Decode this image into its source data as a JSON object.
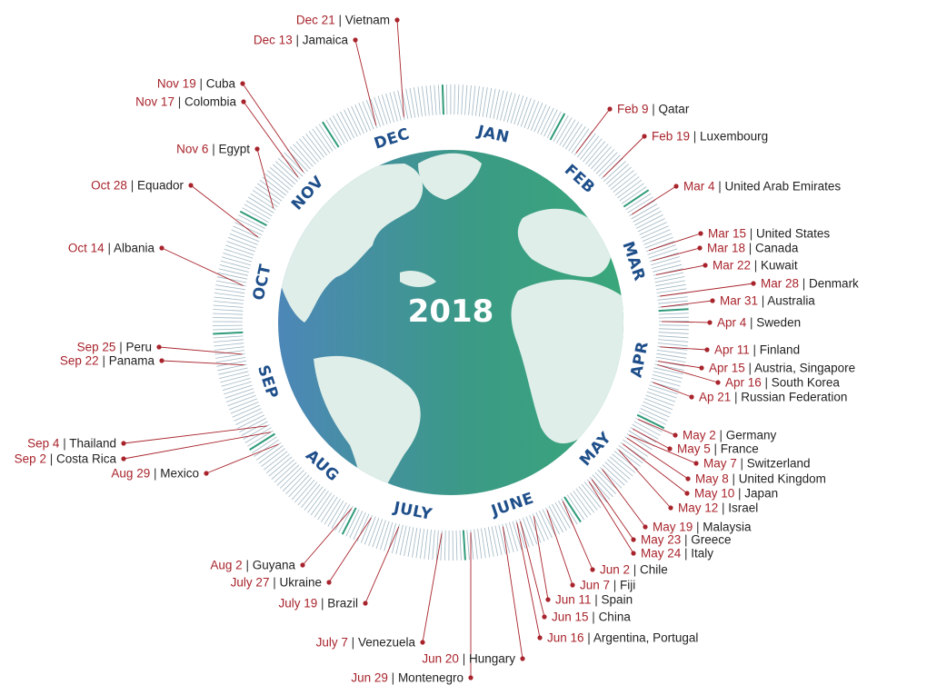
{
  "year": "2018",
  "months": [
    "JAN",
    "FEB",
    "MAR",
    "APR",
    "MAY",
    "JUNE",
    "JULY",
    "AUG",
    "SEP",
    "OCT",
    "NOV",
    "DEC"
  ],
  "colors": {
    "date": "#a8242c",
    "line": "#a8242c",
    "tick": "#9fb6c4",
    "tick_highlight": "#2f9b7a",
    "month_label": "#1f4f8a",
    "globe_blue": "#4d87b8",
    "globe_green": "#3aa77a",
    "land": "#dfeee8"
  },
  "events": [
    {
      "date": "Dec 21",
      "country": "Vietnam",
      "doy": 355
    },
    {
      "date": "Dec 13",
      "country": "Jamaica",
      "doy": 347
    },
    {
      "date": "Nov 19",
      "country": "Cuba",
      "doy": 323
    },
    {
      "date": "Nov 17",
      "country": "Colombia",
      "doy": 321
    },
    {
      "date": "Nov 6",
      "country": "Egypt",
      "doy": 310
    },
    {
      "date": "Oct 28",
      "country": "Equador",
      "doy": 301
    },
    {
      "date": "Oct 14",
      "country": "Albania",
      "doy": 287
    },
    {
      "date": "Sep 25",
      "country": "Peru",
      "doy": 268
    },
    {
      "date": "Sep 22",
      "country": "Panama",
      "doy": 265
    },
    {
      "date": "Sep 4",
      "country": "Thailand",
      "doy": 247
    },
    {
      "date": "Sep 2",
      "country": "Costa Rica",
      "doy": 245
    },
    {
      "date": "Aug 29",
      "country": "Mexico",
      "doy": 241
    },
    {
      "date": "Aug 2",
      "country": "Guyana",
      "doy": 214
    },
    {
      "date": "July 27",
      "country": "Ukraine",
      "doy": 208
    },
    {
      "date": "July 19",
      "country": "Brazil",
      "doy": 200
    },
    {
      "date": "July 7",
      "country": "Venezuela",
      "doy": 188
    },
    {
      "date": "Jun 29",
      "country": "Montenegro",
      "doy": 180
    },
    {
      "date": "Jun 20",
      "country": "Hungary",
      "doy": 171
    },
    {
      "date": "Jun 16",
      "country": "Argentina, Portugal",
      "doy": 167
    },
    {
      "date": "Jun 15",
      "country": "China",
      "doy": 166
    },
    {
      "date": "Jun 11",
      "country": "Spain",
      "doy": 162
    },
    {
      "date": "Jun 7",
      "country": "Fiji",
      "doy": 158
    },
    {
      "date": "Jun 2",
      "country": "Chile",
      "doy": 153
    },
    {
      "date": "May 24",
      "country": "Italy",
      "doy": 144
    },
    {
      "date": "May 23",
      "country": "Greece",
      "doy": 143
    },
    {
      "date": "May 19",
      "country": "Malaysia",
      "doy": 139
    },
    {
      "date": "May 12",
      "country": "Israel",
      "doy": 132
    },
    {
      "date": "May 10",
      "country": "Japan",
      "doy": 130
    },
    {
      "date": "May 8",
      "country": "United Kingdom",
      "doy": 128
    },
    {
      "date": "May 7",
      "country": "Switzerland",
      "doy": 127
    },
    {
      "date": "May 5",
      "country": "France",
      "doy": 125
    },
    {
      "date": "May 2",
      "country": "Germany",
      "doy": 122
    },
    {
      "date": "Ap 21",
      "country": "Russian Federation",
      "doy": 111
    },
    {
      "date": "Apr 16",
      "country": "South Korea",
      "doy": 106
    },
    {
      "date": "Apr 15",
      "country": "Austria, Singapore",
      "doy": 105
    },
    {
      "date": "Apr 11",
      "country": "Finland",
      "doy": 101
    },
    {
      "date": "Apr 4",
      "country": "Sweden",
      "doy": 94
    },
    {
      "date": "Mar 31",
      "country": "Australia",
      "doy": 90
    },
    {
      "date": "Mar 28",
      "country": "Denmark",
      "doy": 87
    },
    {
      "date": "Mar 22",
      "country": "Kuwait",
      "doy": 81
    },
    {
      "date": "Mar 18",
      "country": "Canada",
      "doy": 77
    },
    {
      "date": "Mar 15",
      "country": "United States",
      "doy": 74
    },
    {
      "date": "Mar 4",
      "country": "United Arab Emirates",
      "doy": 63
    },
    {
      "date": "Feb 19",
      "country": "Luxembourg",
      "doy": 50
    },
    {
      "date": "Feb 9",
      "country": "Qatar",
      "doy": 40
    }
  ]
}
